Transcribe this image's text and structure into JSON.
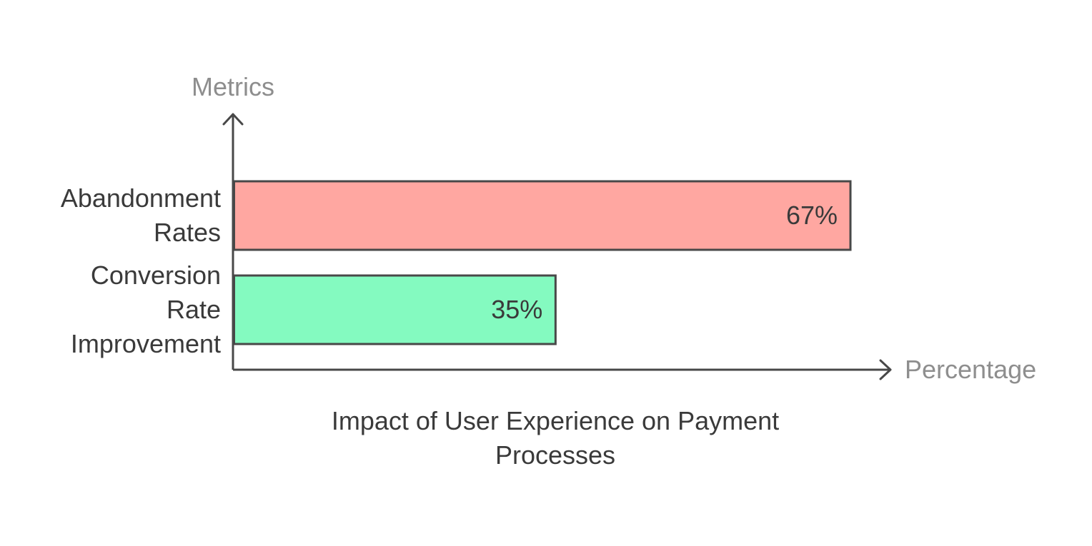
{
  "chart_data": {
    "type": "bar",
    "orientation": "horizontal",
    "title": "Impact of User Experience on Payment Processes",
    "xlabel": "Percentage",
    "ylabel": "Metrics",
    "categories": [
      "Abandonment Rates",
      "Conversion Rate Improvement"
    ],
    "values": [
      67,
      35
    ],
    "value_labels": [
      "67%",
      "35%"
    ],
    "bar_colors": [
      "#FFA7A1",
      "#84FAC0"
    ],
    "xlim": [
      0,
      100
    ],
    "grid": false,
    "legend": "none"
  },
  "colors": {
    "axis": "#484848",
    "axis_title": "#8E8E8E",
    "text": "#3A3A3A"
  }
}
